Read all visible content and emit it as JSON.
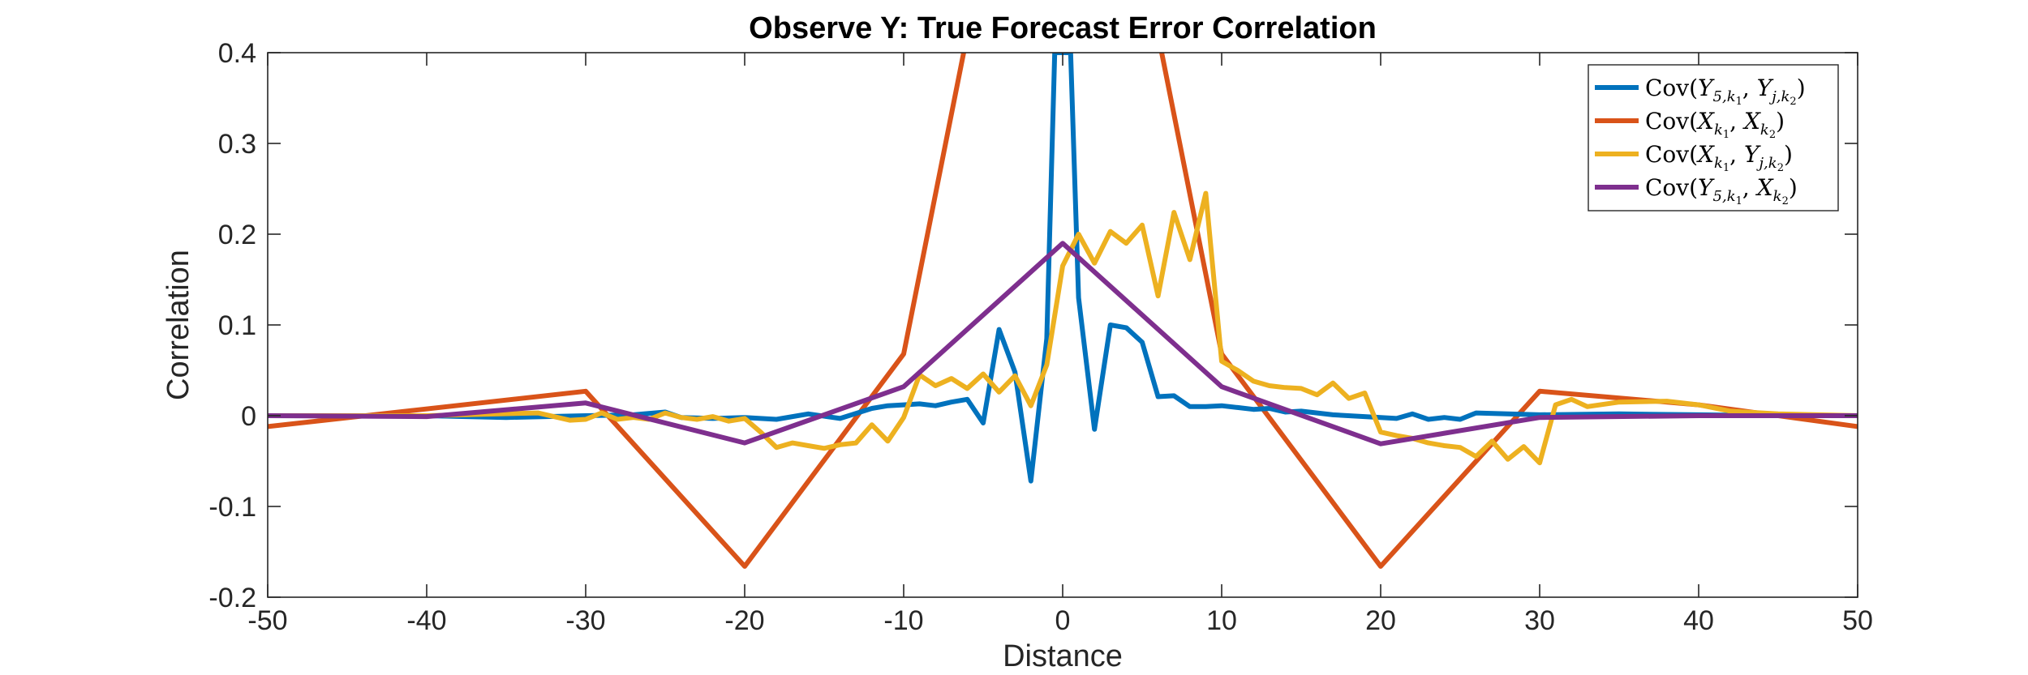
{
  "chart_data": {
    "type": "line",
    "title": "Observe Y: True Forecast Error Correlation",
    "xlabel": "Distance",
    "ylabel": "Correlation",
    "xlim": [
      -50,
      50
    ],
    "ylim": [
      -0.2,
      0.4
    ],
    "xticks": [
      -50,
      -40,
      -30,
      -20,
      -10,
      0,
      10,
      20,
      30,
      40,
      50
    ],
    "yticks": [
      -0.2,
      -0.1,
      0,
      0.1,
      0.2,
      0.3,
      0.4
    ],
    "xtick_labels": [
      "-50",
      "-40",
      "-30",
      "-20",
      "-10",
      "0",
      "10",
      "20",
      "30",
      "40",
      "50"
    ],
    "ytick_labels": [
      "-0.2",
      "-0.1",
      "0",
      "0.1",
      "0.2",
      "0.3",
      "0.4"
    ],
    "grid": false,
    "legend_position": "top-right",
    "series": [
      {
        "name": "Cov(Y_{5,k1}, Y_{j,k2})",
        "legend": {
          "pre": "Cov(",
          "a": "Y",
          "asub": "5,k",
          "asubsub": "1",
          "b": "Y",
          "bsub": "j,k",
          "bsubsub": "2",
          "post": ")"
        },
        "color": "#0072BD",
        "x": [
          -50,
          -45,
          -40,
          -35,
          -30,
          -27,
          -25,
          -24,
          -22,
          -20,
          -18,
          -16,
          -14,
          -12,
          -11,
          -10,
          -9,
          -8,
          -7,
          -6,
          -5,
          -4,
          -3,
          -2,
          -1,
          -0.5,
          0,
          0.5,
          1,
          2,
          3,
          4,
          5,
          6,
          7,
          8,
          9,
          10,
          11,
          12,
          13,
          14,
          15,
          17,
          20,
          21,
          22,
          23,
          24,
          25,
          26,
          28,
          30,
          35,
          40,
          45,
          50
        ],
        "y": [
          0,
          0,
          0,
          -0.002,
          0,
          0.001,
          0.004,
          -0.002,
          -0.003,
          -0.002,
          -0.004,
          0.002,
          -0.003,
          0.008,
          0.011,
          0.012,
          0.013,
          0.011,
          0.015,
          0.018,
          -0.008,
          0.095,
          0.048,
          -0.072,
          0.085,
          0.4,
          0.4,
          0.4,
          0.13,
          -0.015,
          0.1,
          0.097,
          0.081,
          0.021,
          0.022,
          0.01,
          0.01,
          0.011,
          0.009,
          0.007,
          0.008,
          0.004,
          0.005,
          0.001,
          -0.002,
          -0.003,
          0.002,
          -0.004,
          -0.002,
          -0.004,
          0.003,
          0.002,
          0.001,
          0.002,
          0.001,
          0,
          0
        ]
      },
      {
        "name": "Cov(X_{k1}, X_{k2})",
        "legend": {
          "pre": "Cov(",
          "a": "X",
          "asub": "k",
          "asubsub": "1",
          "b": "X",
          "bsub": "k",
          "bsubsub": "2",
          "post": ")"
        },
        "color": "#D95319",
        "x": [
          -50,
          -30,
          -20,
          -10,
          -6,
          6,
          10,
          20,
          30,
          40,
          50
        ],
        "y": [
          -0.012,
          0.027,
          -0.166,
          0.068,
          0.42,
          0.42,
          0.068,
          -0.166,
          0.027,
          0.012,
          -0.012
        ]
      },
      {
        "name": "Cov(X_{k1}, Y_{j,k2})",
        "legend": {
          "pre": "Cov(",
          "a": "X",
          "asub": "k",
          "asubsub": "1",
          "b": "Y",
          "bsub": "j,k",
          "bsubsub": "2",
          "post": ")"
        },
        "color": "#EDB120",
        "x": [
          -50,
          -40,
          -33,
          -31,
          -30,
          -29,
          -28,
          -27,
          -26,
          -25,
          -24,
          -23,
          -22,
          -21,
          -20,
          -19,
          -18,
          -17,
          -16,
          -15,
          -14,
          -13,
          -12,
          -11,
          -10,
          -9,
          -8,
          -7,
          -6,
          -5,
          -4,
          -3,
          -2,
          -1,
          0,
          1,
          2,
          3,
          4,
          5,
          6,
          7,
          8,
          9,
          10,
          11,
          12,
          13,
          14,
          15,
          16,
          17,
          18,
          19,
          20,
          21,
          22,
          23,
          24,
          25,
          26,
          27,
          28,
          29,
          30,
          31,
          32,
          33,
          35,
          38,
          40,
          42,
          45,
          50
        ],
        "y": [
          0,
          0,
          0.003,
          -0.005,
          -0.004,
          0.003,
          -0.004,
          -0.002,
          -0.004,
          0.003,
          -0.002,
          -0.004,
          -0.001,
          -0.006,
          -0.003,
          -0.018,
          -0.035,
          -0.03,
          -0.033,
          -0.036,
          -0.032,
          -0.03,
          -0.01,
          -0.028,
          -0.002,
          0.045,
          0.033,
          0.041,
          0.03,
          0.046,
          0.026,
          0.044,
          0.011,
          0.056,
          0.165,
          0.2,
          0.168,
          0.203,
          0.19,
          0.21,
          0.132,
          0.224,
          0.172,
          0.245,
          0.06,
          0.05,
          0.038,
          0.033,
          0.031,
          0.03,
          0.023,
          0.036,
          0.019,
          0.025,
          -0.018,
          -0.022,
          -0.025,
          -0.03,
          -0.033,
          -0.035,
          -0.045,
          -0.028,
          -0.048,
          -0.034,
          -0.052,
          0.012,
          0.018,
          0.01,
          0.015,
          0.016,
          0.012,
          0.005,
          0.002,
          0
        ]
      },
      {
        "name": "Cov(Y_{5,k1}, X_{k2})",
        "legend": {
          "pre": "Cov(",
          "a": "Y",
          "asub": "5,k",
          "asubsub": "1",
          "b": "X",
          "bsub": "k",
          "bsubsub": "2",
          "post": ")"
        },
        "color": "#7E2F8E",
        "x": [
          -50,
          -40,
          -30,
          -20,
          -10,
          0,
          10,
          20,
          30,
          40,
          50
        ],
        "y": [
          0,
          -0.001,
          0.014,
          -0.03,
          0.032,
          0.19,
          0.032,
          -0.031,
          -0.002,
          0,
          0
        ]
      }
    ]
  }
}
